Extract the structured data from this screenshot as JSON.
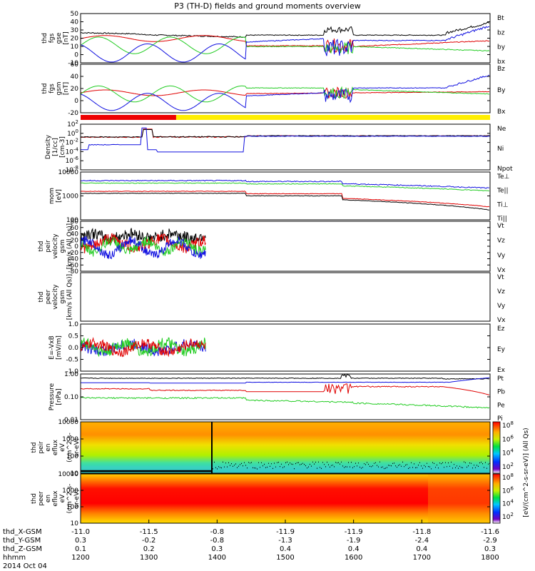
{
  "title": "P3 (TH-D) fields and ground moments overview",
  "date": "2014 Oct 04",
  "colors": {
    "black": "#000000",
    "red": "#e00000",
    "green": "#22cc22",
    "blue": "#1010e0",
    "yellow": "#ffee00",
    "flagred": "#ee0000"
  },
  "chart_data": [
    {
      "type": "line",
      "ylabel": [
        "thd",
        "fgs",
        "gse",
        "[nT]"
      ],
      "yticks": [
        "50",
        "40",
        "30",
        "20",
        "10",
        "0",
        "-10"
      ],
      "ylim": [
        -15,
        50
      ],
      "series": [
        {
          "name": "Bt",
          "color": "black"
        },
        {
          "name": "bz",
          "color": "red"
        },
        {
          "name": "by",
          "color": "green"
        },
        {
          "name": "bx",
          "color": "blue"
        }
      ]
    },
    {
      "type": "line",
      "ylabel": [
        "thd",
        "fgs",
        "gsm",
        "[nT]"
      ],
      "yticks": [
        "60",
        "40",
        "20",
        "0",
        "-20"
      ],
      "ylim": [
        -25,
        60
      ],
      "series": [
        {
          "name": "Bz",
          "color": "red"
        },
        {
          "name": "By",
          "color": "green"
        },
        {
          "name": "Bx",
          "color": "blue"
        }
      ]
    },
    {
      "type": "flag",
      "segments": [
        {
          "from": "1200",
          "to": "1340",
          "color": "flagred"
        },
        {
          "from": "1340",
          "to": "1800",
          "color": "yellow"
        }
      ]
    },
    {
      "type": "line",
      "log": true,
      "ylabel": [
        "Density",
        "[1/cc]",
        "[cm-3]"
      ],
      "yticks": [
        "10^2",
        "10^0",
        "10^-2",
        "10^-4",
        "10^-6",
        "10^-8"
      ],
      "ylim": [
        1e-09,
        1000.0
      ],
      "series": [
        {
          "name": "Ne",
          "color": "red"
        },
        {
          "name": "Ni",
          "color": "black"
        },
        {
          "name": "Npot",
          "color": "blue"
        }
      ]
    },
    {
      "type": "line",
      "log": true,
      "ylabel": [
        "mom",
        "[eV]"
      ],
      "yticks": [
        "10000",
        "1000",
        "100"
      ],
      "ylim": [
        40,
        12000
      ],
      "series": [
        {
          "name": "Te⊥",
          "color": "red"
        },
        {
          "name": "Te||",
          "color": "black"
        },
        {
          "name": "Ti⊥",
          "color": "blue"
        },
        {
          "name": "Ti||",
          "color": "green"
        }
      ]
    },
    {
      "type": "line",
      "ylabel": [
        "thd",
        "peir",
        "velocity",
        "gsm",
        "[km/s (All Qs)]"
      ],
      "yticks": [
        "80",
        "60",
        "40",
        "20",
        "0",
        "-20",
        "-40",
        "-60",
        "-80"
      ],
      "ylim": [
        -85,
        85
      ],
      "series": [
        {
          "name": "Vt",
          "color": "black"
        },
        {
          "name": "Vz",
          "color": "red"
        },
        {
          "name": "Vy",
          "color": "green"
        },
        {
          "name": "Vx",
          "color": "blue"
        }
      ]
    },
    {
      "type": "line",
      "ylabel": [
        "thd",
        "peer",
        "velocity",
        "gsm",
        "[km/s (All Qs)]"
      ],
      "yticks": [],
      "ylim": [
        -1,
        1
      ],
      "series": [
        {
          "name": "Vt",
          "color": "black"
        },
        {
          "name": "Vz",
          "color": "red"
        },
        {
          "name": "Vy",
          "color": "green"
        },
        {
          "name": "Vx",
          "color": "blue"
        }
      ]
    },
    {
      "type": "line",
      "ylabel": [
        "E=-VxB",
        "[mV/m]"
      ],
      "yticks": [
        "1.0",
        "0.5",
        "0.0",
        "-0.5",
        "-1.0"
      ],
      "ylim": [
        -1.05,
        1.05
      ],
      "series": [
        {
          "name": "Ez",
          "color": "red"
        },
        {
          "name": "Ey",
          "color": "green"
        },
        {
          "name": "Ex",
          "color": "blue"
        }
      ]
    },
    {
      "type": "line",
      "log": true,
      "ylabel": [
        "Pressure",
        "[nPa]"
      ],
      "yticks": [
        "1.00",
        "0.10",
        "0.01"
      ],
      "ylim": [
        0.009,
        1.3
      ],
      "series": [
        {
          "name": "Pt",
          "color": "black"
        },
        {
          "name": "Pb",
          "color": "red"
        },
        {
          "name": "Pe",
          "color": "green"
        },
        {
          "name": "Pi",
          "color": "blue"
        }
      ]
    },
    {
      "type": "heatmap",
      "ylabel": [
        "thd",
        "peir",
        "en",
        "eflux",
        "eV",
        "(cm^2-s-",
        "sr-eV)"
      ],
      "yticks": [
        "10000",
        "1000",
        "100",
        "10"
      ],
      "colorbar": [
        "10^8",
        "10^6",
        "10^4",
        "10^2"
      ],
      "colorbar_label": "[eV/(cm^2-s-sr-eV)] (All Qs)"
    },
    {
      "type": "heatmap",
      "ylabel": [
        "thd",
        "peer",
        "en",
        "eflux",
        "eV",
        "(cm^2-s-",
        "sr-eV)"
      ],
      "yticks": [
        "10000",
        "1000",
        "100",
        "10"
      ],
      "colorbar": [
        "10^8",
        "10^6",
        "10^4",
        "10^2"
      ]
    }
  ],
  "xaxis": {
    "rows": [
      {
        "label": "thd_X-GSM",
        "values": [
          "-11.0",
          "-11.5",
          "-0.8",
          "-11.9",
          "-11.9",
          "-11.8",
          "-11.6"
        ]
      },
      {
        "label": "thd_Y-GSM",
        "values": [
          "0.3",
          "-0.2",
          "-0.8",
          "-1.3",
          "-1.9",
          "-2.4",
          "-2.9"
        ]
      },
      {
        "label": "thd_Z-GSM",
        "values": [
          "0.1",
          "0.2",
          "0.3",
          "0.4",
          "0.4",
          "0.4",
          "0.3"
        ]
      },
      {
        "label": "hhmm",
        "values": [
          "1200",
          "1300",
          "1400",
          "1500",
          "1600",
          "1700",
          "1800"
        ]
      }
    ]
  }
}
